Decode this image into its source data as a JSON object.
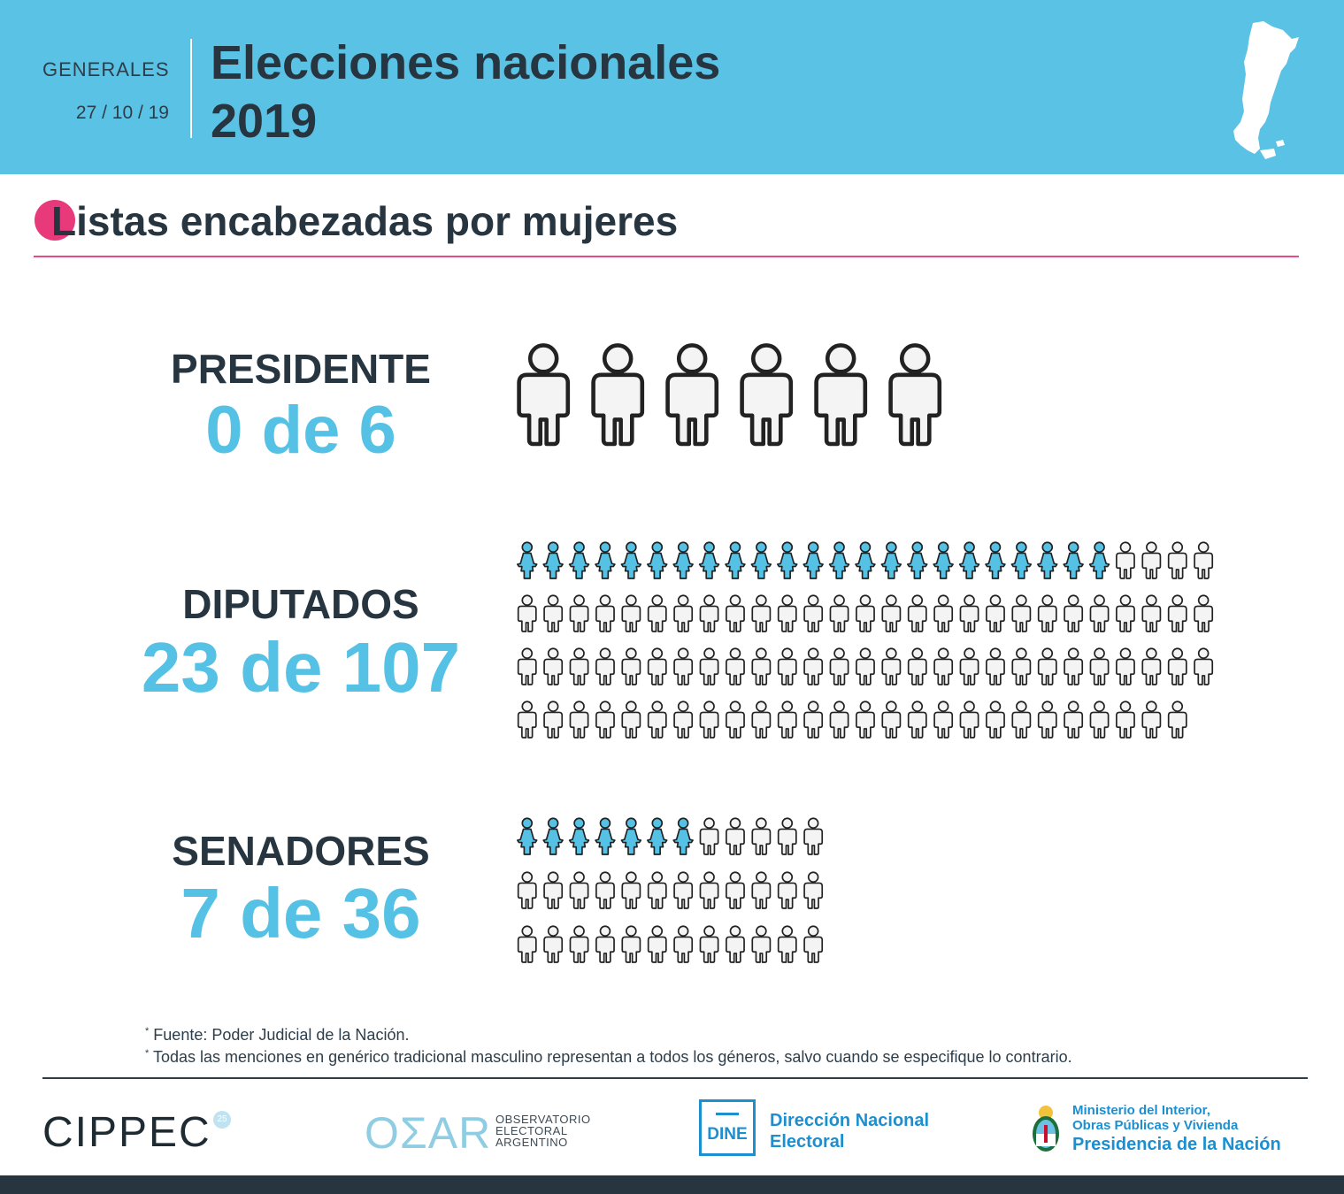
{
  "header": {
    "label": "GENERALES",
    "date": "27 / 10 / 19",
    "title_line1": "Elecciones nacionales",
    "title_line2": "2019"
  },
  "section": {
    "title": "Listas encabezadas por mujeres"
  },
  "colors": {
    "header_bg": "#5ac2e4",
    "women": "#55c1e4",
    "men": "#f4f4f4",
    "outline": "#222222",
    "accent": "#e83a7a"
  },
  "chart_data": [
    {
      "type": "table",
      "title": "PRESIDENTE",
      "value_text": "0 de 6",
      "women": 0,
      "total": 6
    },
    {
      "type": "table",
      "title": "DIPUTADOS",
      "value_text": "23 de 107",
      "women": 23,
      "total": 107
    },
    {
      "type": "table",
      "title": "SENADORES",
      "value_text": "7 de 36",
      "women": 7,
      "total": 36
    }
  ],
  "notes": [
    "Fuente: Poder Judicial de la Nación.",
    "Todas las menciones en genérico tradicional masculino representan a todos los géneros, salvo cuando se especifique lo contrario."
  ],
  "logos": {
    "cippec": "CIPPEC",
    "oear_mark": "OΣAR",
    "oear_line1": "OBSERVATORIO",
    "oear_line2": "ELECTORAL",
    "oear_line3": "ARGENTINO",
    "dine_mark": "DINE",
    "dine_line1": "Dirección Nacional",
    "dine_line2": "Electoral",
    "ministry_line1": "Ministerio del Interior,",
    "ministry_line2": "Obras Públicas y Vivienda",
    "presidency": "Presidencia de la Nación"
  }
}
